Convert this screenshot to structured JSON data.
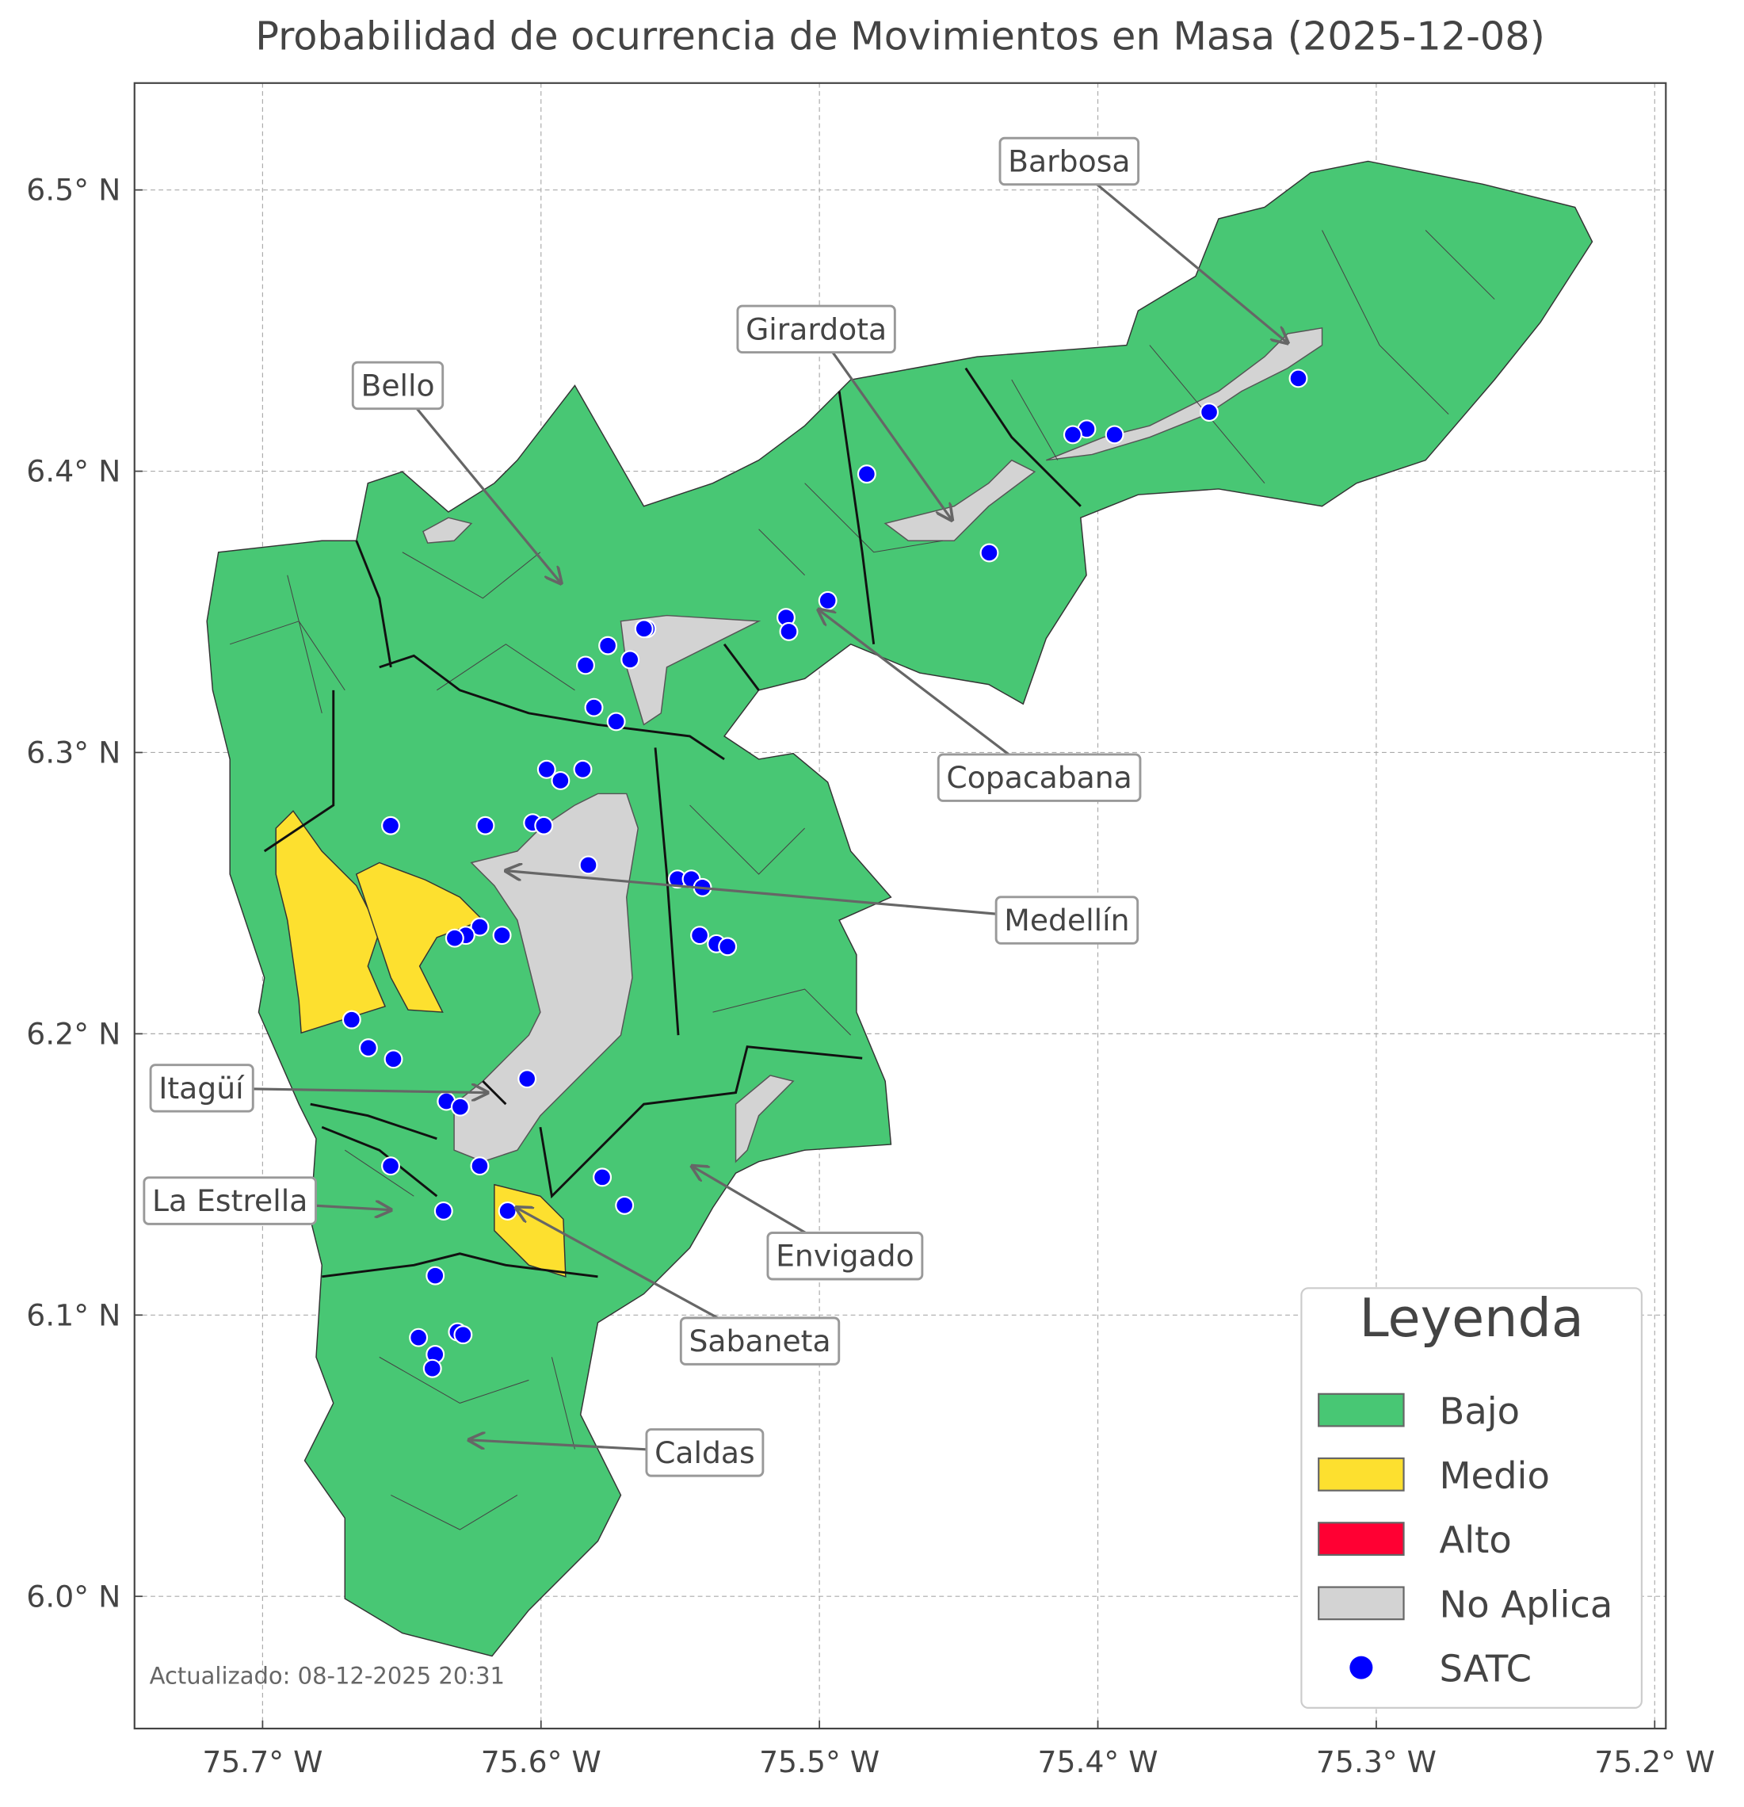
{
  "chart_data": {
    "type": "map",
    "title": "Probabilidad de ocurrencia de Movimientos en Masa (2025-12-08)",
    "xlim": [
      -75.746,
      -75.196
    ],
    "ylim": [
      5.953,
      6.538
    ],
    "xticks": [
      {
        "value": -75.7,
        "label": "75.7° W"
      },
      {
        "value": -75.6,
        "label": "75.6° W"
      },
      {
        "value": -75.5,
        "label": "75.5° W"
      },
      {
        "value": -75.4,
        "label": "75.4° W"
      },
      {
        "value": -75.3,
        "label": "75.3° W"
      },
      {
        "value": -75.2,
        "label": "75.2° W"
      }
    ],
    "yticks": [
      {
        "value": 6.0,
        "label": "6.0° N"
      },
      {
        "value": 6.1,
        "label": "6.1° N"
      },
      {
        "value": 6.2,
        "label": "6.2° N"
      },
      {
        "value": 6.3,
        "label": "6.3° N"
      },
      {
        "value": 6.4,
        "label": "6.4° N"
      },
      {
        "value": 6.5,
        "label": "6.5° N"
      }
    ],
    "grid": true,
    "series": [
      {
        "name": "SATC",
        "color": "#0000ff",
        "x": [
          -75.328,
          -75.36,
          -75.394,
          -75.404,
          -75.409,
          -75.483,
          -75.439,
          -75.497,
          -75.512,
          -75.511,
          -75.562,
          -75.563,
          -75.568,
          -75.576,
          -75.584,
          -75.581,
          -75.573,
          -75.598,
          -75.593,
          -75.585,
          -75.654,
          -75.62,
          -75.603,
          -75.599,
          -75.583,
          -75.551,
          -75.546,
          -75.542,
          -75.543,
          -75.537,
          -75.533,
          -75.622,
          -75.614,
          -75.627,
          -75.631,
          -75.668,
          -75.662,
          -75.653,
          -75.605,
          -75.634,
          -75.629,
          -75.654,
          -75.622,
          -75.578,
          -75.57,
          -75.635,
          -75.612,
          -75.638,
          -75.644,
          -75.63,
          -75.628,
          -75.638,
          -75.639
        ],
        "values": [
          6.433,
          6.421,
          6.413,
          6.415,
          6.413,
          6.399,
          6.371,
          6.354,
          6.348,
          6.343,
          6.344,
          6.344,
          6.333,
          6.338,
          6.331,
          6.316,
          6.311,
          6.294,
          6.29,
          6.294,
          6.274,
          6.274,
          6.275,
          6.274,
          6.26,
          6.255,
          6.255,
          6.252,
          6.235,
          6.232,
          6.231,
          6.238,
          6.235,
          6.235,
          6.234,
          6.205,
          6.195,
          6.191,
          6.184,
          6.176,
          6.174,
          6.153,
          6.153,
          6.149,
          6.139,
          6.137,
          6.137,
          6.114,
          6.092,
          6.094,
          6.093,
          6.086,
          6.081
        ]
      }
    ],
    "legend": {
      "title": "Leyenda",
      "position": "lower right",
      "entries": [
        {
          "name": "Bajo",
          "color": "#48c774"
        },
        {
          "name": "Medio",
          "color": "#fde02f"
        },
        {
          "name": "Alto",
          "color": "#ff0033"
        },
        {
          "name": "No Aplica",
          "color": "#d3d3d3"
        }
      ]
    },
    "annotations": [
      "Barbosa",
      "Girardota",
      "Bello",
      "Copacabana",
      "Medellín",
      "Itagüí",
      "La Estrella",
      "Envigado",
      "Sabaneta",
      "Caldas"
    ],
    "footnote": "Actualizado: 08-12-2025 20:31"
  }
}
